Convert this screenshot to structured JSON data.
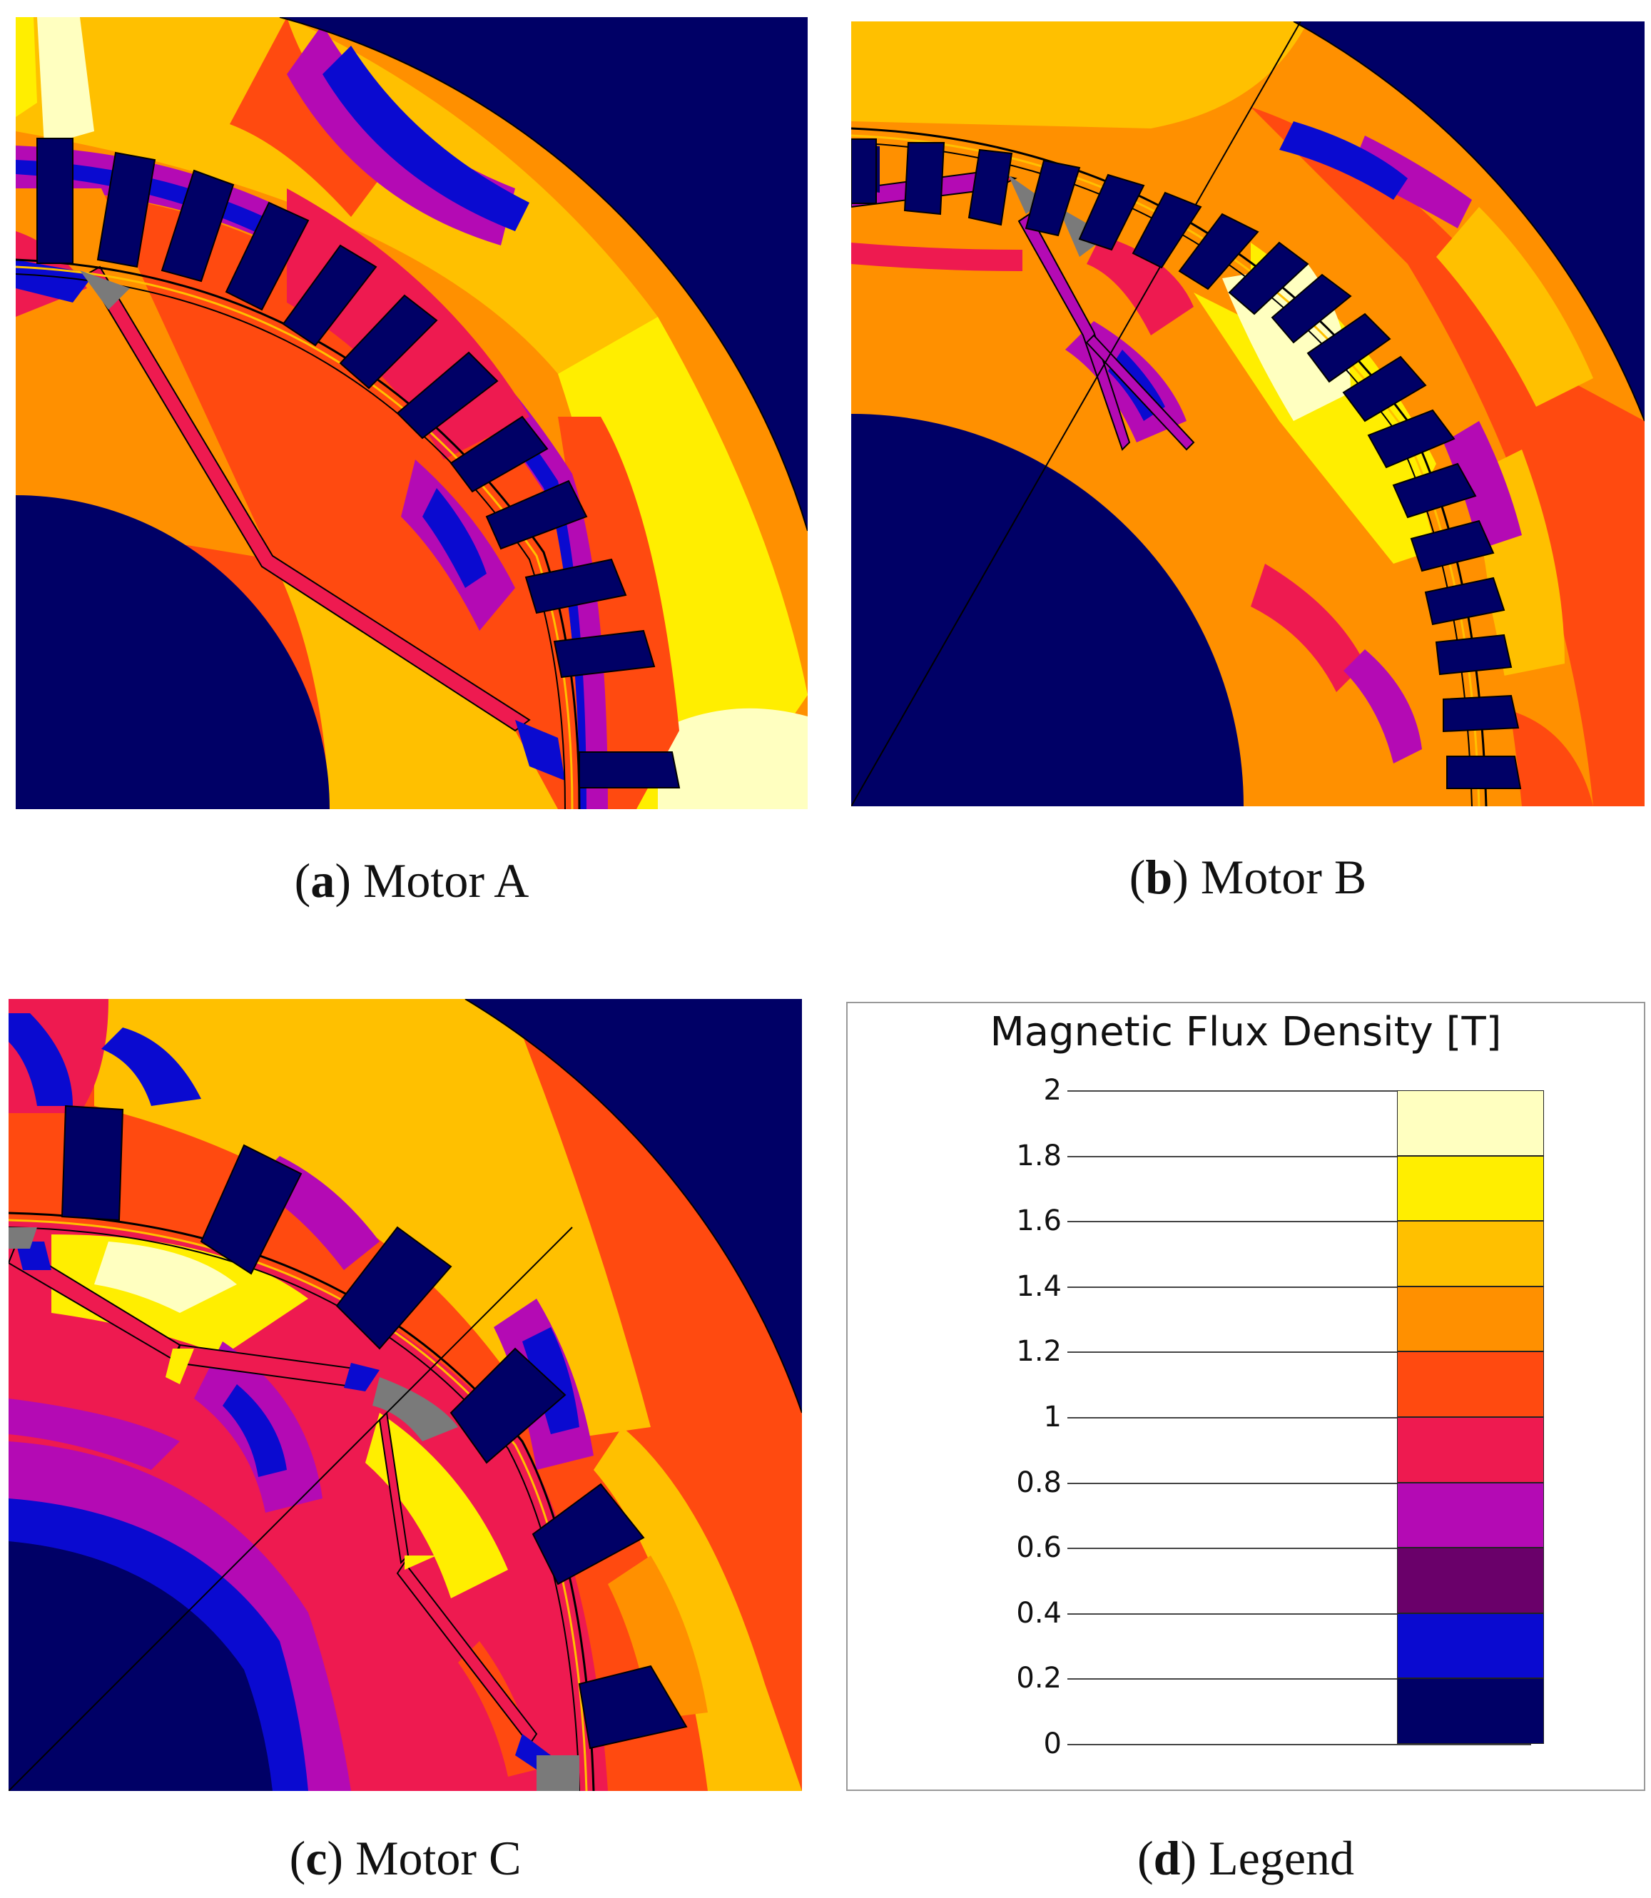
{
  "captions": [
    {
      "letter": "a",
      "text": " Motor A"
    },
    {
      "letter": "b",
      "text": " Motor B"
    },
    {
      "letter": "c",
      "text": " Motor C"
    },
    {
      "letter": "d",
      "text": " Legend"
    }
  ],
  "legend": {
    "title": "Magnetic Flux Density [T]",
    "ticks": [
      "2",
      "1.8",
      "1.6",
      "1.4",
      "1.2",
      "1",
      "0.8",
      "0.6",
      "0.4",
      "0.2",
      "0"
    ],
    "colors": [
      "#ffffc0",
      "#ffee00",
      "#ffc000",
      "#ff9000",
      "#ff4a10",
      "#ee1a50",
      "#b40ab4",
      "#6a006a",
      "#0a0ad0",
      "#000066"
    ]
  },
  "colors": {
    "background": "#000066",
    "slot_outline": "#000000",
    "gap_gray": "#7a7a7a"
  }
}
